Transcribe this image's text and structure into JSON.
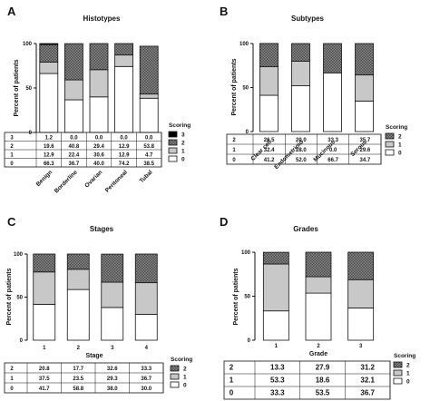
{
  "chart_data": [
    {
      "panel": "A",
      "type": "bar",
      "stacked": true,
      "title": "Histotypes",
      "ylabel": "Percent of patients",
      "xlabel": "",
      "ylim": [
        0,
        100
      ],
      "yticks": [
        "0",
        "50",
        "100"
      ],
      "categories": [
        "Benign",
        "Borderline",
        "Ovarian",
        "Peritoneal",
        "Tubal"
      ],
      "series": [
        {
          "name": "0",
          "values": [
            66.3,
            36.7,
            40.0,
            74.2,
            38.5
          ]
        },
        {
          "name": "1",
          "values": [
            12.9,
            22.4,
            30.6,
            12.9,
            4.7
          ]
        },
        {
          "name": "2",
          "values": [
            19.6,
            40.8,
            29.4,
            12.9,
            53.8
          ]
        },
        {
          "name": "3",
          "values": [
            1.2,
            0.0,
            0.0,
            0.0,
            0.0
          ]
        }
      ],
      "table_rows": [
        {
          "label": "3",
          "cells": [
            "1.2",
            "0.0",
            "0.0",
            "0.0",
            "0.0"
          ]
        },
        {
          "label": "2",
          "cells": [
            "19.6",
            "40.8",
            "29.4",
            "12.9",
            "53.8"
          ]
        },
        {
          "label": "1",
          "cells": [
            "12.9",
            "22.4",
            "30.6",
            "12.9",
            "4.7"
          ]
        },
        {
          "label": "0",
          "cells": [
            "66.3",
            "36.7",
            "40.0",
            "74.2",
            "38.5"
          ]
        }
      ],
      "legend_title": "Scoring",
      "legend": [
        "3",
        "2",
        "1",
        "0"
      ]
    },
    {
      "panel": "B",
      "type": "bar",
      "stacked": true,
      "title": "Subtypes",
      "ylabel": "Percent of patients",
      "xlabel": "",
      "ylim": [
        0,
        100
      ],
      "yticks": [
        "0",
        "50",
        "100"
      ],
      "categories": [
        "Clear cell",
        "Endometrioid",
        "Mucinous",
        "Serous"
      ],
      "series": [
        {
          "name": "0",
          "values": [
            41.2,
            52.0,
            66.7,
            34.7
          ]
        },
        {
          "name": "1",
          "values": [
            32.4,
            28.0,
            0.0,
            29.6
          ]
        },
        {
          "name": "2",
          "values": [
            26.5,
            20.0,
            33.3,
            35.7
          ]
        }
      ],
      "table_rows": [
        {
          "label": "2",
          "cells": [
            "26.5",
            "20.0",
            "33.3",
            "35.7"
          ]
        },
        {
          "label": "1",
          "cells": [
            "32.4",
            "28.0",
            "0.0",
            "29.6"
          ]
        },
        {
          "label": "0",
          "cells": [
            "41.2",
            "52.0",
            "66.7",
            "34.7"
          ]
        }
      ],
      "legend_title": "Scoring",
      "legend": [
        "2",
        "1",
        "0"
      ]
    },
    {
      "panel": "C",
      "type": "bar",
      "stacked": true,
      "title": "Stages",
      "ylabel": "Percent of patients",
      "xlabel": "Stage",
      "ylim": [
        0,
        100
      ],
      "yticks": [
        "0",
        "50",
        "100"
      ],
      "categories": [
        "1",
        "2",
        "3",
        "4"
      ],
      "series": [
        {
          "name": "0",
          "values": [
            41.7,
            58.8,
            38.0,
            30.0
          ]
        },
        {
          "name": "1",
          "values": [
            37.5,
            23.5,
            29.3,
            36.7
          ]
        },
        {
          "name": "2",
          "values": [
            20.8,
            17.7,
            32.6,
            33.3
          ]
        }
      ],
      "table_rows": [
        {
          "label": "2",
          "cells": [
            "20.8",
            "17.7",
            "32.6",
            "33.3"
          ]
        },
        {
          "label": "1",
          "cells": [
            "37.5",
            "23.5",
            "29.3",
            "36.7"
          ]
        },
        {
          "label": "0",
          "cells": [
            "41.7",
            "58.8",
            "38.0",
            "30.0"
          ]
        }
      ],
      "legend_title": "Scoring",
      "legend": [
        "2",
        "1",
        "0"
      ]
    },
    {
      "panel": "D",
      "type": "bar",
      "stacked": true,
      "title": "Grades",
      "ylabel": "Percent of patients",
      "xlabel": "Grade",
      "ylim": [
        0,
        100
      ],
      "yticks": [
        "0",
        "50",
        "100"
      ],
      "categories": [
        "1",
        "2",
        "3"
      ],
      "series": [
        {
          "name": "0",
          "values": [
            33.3,
            53.5,
            36.7
          ]
        },
        {
          "name": "1",
          "values": [
            53.3,
            18.6,
            32.1
          ]
        },
        {
          "name": "2",
          "values": [
            13.3,
            27.9,
            31.2
          ]
        }
      ],
      "table_rows": [
        {
          "label": "2",
          "cells": [
            "13.3",
            "27.9",
            "31.2"
          ]
        },
        {
          "label": "1",
          "cells": [
            "53.3",
            "18.6",
            "32.1"
          ]
        },
        {
          "label": "0",
          "cells": [
            "33.3",
            "53.5",
            "36.7"
          ]
        }
      ],
      "legend_title": "Scoring",
      "legend": [
        "2",
        "1",
        "0"
      ]
    }
  ],
  "colors": {
    "score_0": "#ffffff",
    "score_1": "#c8c8c8",
    "score_2": "#5a5a5a",
    "score_3": "#000000",
    "stroke": "#111111"
  }
}
